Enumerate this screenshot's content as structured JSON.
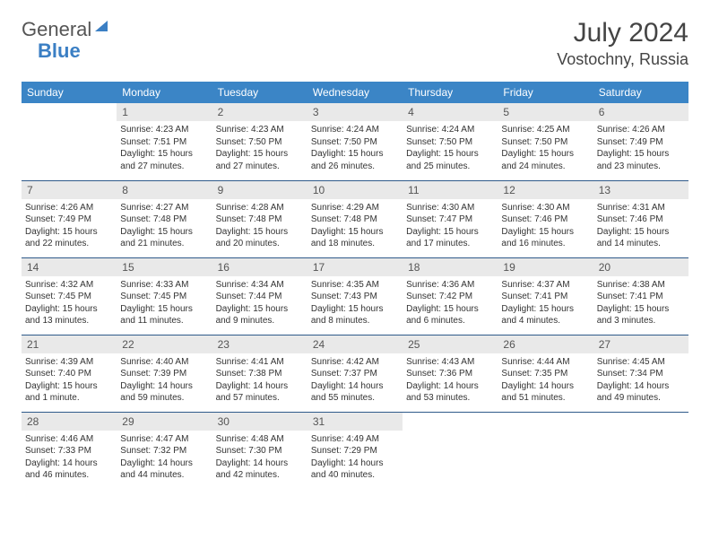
{
  "logo": {
    "text1": "General",
    "text2": "Blue"
  },
  "title": "July 2024",
  "location": "Vostochny, Russia",
  "dow": [
    "Sunday",
    "Monday",
    "Tuesday",
    "Wednesday",
    "Thursday",
    "Friday",
    "Saturday"
  ],
  "colors": {
    "headerBg": "#3b85c6",
    "headerText": "#ffffff",
    "dayNumBg": "#e9e9e9",
    "border": "#2f5a8a",
    "logoBlue": "#3b7fc4"
  },
  "weeks": [
    [
      null,
      {
        "n": "1",
        "sr": "Sunrise: 4:23 AM",
        "ss": "Sunset: 7:51 PM",
        "dl": "Daylight: 15 hours and 27 minutes."
      },
      {
        "n": "2",
        "sr": "Sunrise: 4:23 AM",
        "ss": "Sunset: 7:50 PM",
        "dl": "Daylight: 15 hours and 27 minutes."
      },
      {
        "n": "3",
        "sr": "Sunrise: 4:24 AM",
        "ss": "Sunset: 7:50 PM",
        "dl": "Daylight: 15 hours and 26 minutes."
      },
      {
        "n": "4",
        "sr": "Sunrise: 4:24 AM",
        "ss": "Sunset: 7:50 PM",
        "dl": "Daylight: 15 hours and 25 minutes."
      },
      {
        "n": "5",
        "sr": "Sunrise: 4:25 AM",
        "ss": "Sunset: 7:50 PM",
        "dl": "Daylight: 15 hours and 24 minutes."
      },
      {
        "n": "6",
        "sr": "Sunrise: 4:26 AM",
        "ss": "Sunset: 7:49 PM",
        "dl": "Daylight: 15 hours and 23 minutes."
      }
    ],
    [
      {
        "n": "7",
        "sr": "Sunrise: 4:26 AM",
        "ss": "Sunset: 7:49 PM",
        "dl": "Daylight: 15 hours and 22 minutes."
      },
      {
        "n": "8",
        "sr": "Sunrise: 4:27 AM",
        "ss": "Sunset: 7:48 PM",
        "dl": "Daylight: 15 hours and 21 minutes."
      },
      {
        "n": "9",
        "sr": "Sunrise: 4:28 AM",
        "ss": "Sunset: 7:48 PM",
        "dl": "Daylight: 15 hours and 20 minutes."
      },
      {
        "n": "10",
        "sr": "Sunrise: 4:29 AM",
        "ss": "Sunset: 7:48 PM",
        "dl": "Daylight: 15 hours and 18 minutes."
      },
      {
        "n": "11",
        "sr": "Sunrise: 4:30 AM",
        "ss": "Sunset: 7:47 PM",
        "dl": "Daylight: 15 hours and 17 minutes."
      },
      {
        "n": "12",
        "sr": "Sunrise: 4:30 AM",
        "ss": "Sunset: 7:46 PM",
        "dl": "Daylight: 15 hours and 16 minutes."
      },
      {
        "n": "13",
        "sr": "Sunrise: 4:31 AM",
        "ss": "Sunset: 7:46 PM",
        "dl": "Daylight: 15 hours and 14 minutes."
      }
    ],
    [
      {
        "n": "14",
        "sr": "Sunrise: 4:32 AM",
        "ss": "Sunset: 7:45 PM",
        "dl": "Daylight: 15 hours and 13 minutes."
      },
      {
        "n": "15",
        "sr": "Sunrise: 4:33 AM",
        "ss": "Sunset: 7:45 PM",
        "dl": "Daylight: 15 hours and 11 minutes."
      },
      {
        "n": "16",
        "sr": "Sunrise: 4:34 AM",
        "ss": "Sunset: 7:44 PM",
        "dl": "Daylight: 15 hours and 9 minutes."
      },
      {
        "n": "17",
        "sr": "Sunrise: 4:35 AM",
        "ss": "Sunset: 7:43 PM",
        "dl": "Daylight: 15 hours and 8 minutes."
      },
      {
        "n": "18",
        "sr": "Sunrise: 4:36 AM",
        "ss": "Sunset: 7:42 PM",
        "dl": "Daylight: 15 hours and 6 minutes."
      },
      {
        "n": "19",
        "sr": "Sunrise: 4:37 AM",
        "ss": "Sunset: 7:41 PM",
        "dl": "Daylight: 15 hours and 4 minutes."
      },
      {
        "n": "20",
        "sr": "Sunrise: 4:38 AM",
        "ss": "Sunset: 7:41 PM",
        "dl": "Daylight: 15 hours and 3 minutes."
      }
    ],
    [
      {
        "n": "21",
        "sr": "Sunrise: 4:39 AM",
        "ss": "Sunset: 7:40 PM",
        "dl": "Daylight: 15 hours and 1 minute."
      },
      {
        "n": "22",
        "sr": "Sunrise: 4:40 AM",
        "ss": "Sunset: 7:39 PM",
        "dl": "Daylight: 14 hours and 59 minutes."
      },
      {
        "n": "23",
        "sr": "Sunrise: 4:41 AM",
        "ss": "Sunset: 7:38 PM",
        "dl": "Daylight: 14 hours and 57 minutes."
      },
      {
        "n": "24",
        "sr": "Sunrise: 4:42 AM",
        "ss": "Sunset: 7:37 PM",
        "dl": "Daylight: 14 hours and 55 minutes."
      },
      {
        "n": "25",
        "sr": "Sunrise: 4:43 AM",
        "ss": "Sunset: 7:36 PM",
        "dl": "Daylight: 14 hours and 53 minutes."
      },
      {
        "n": "26",
        "sr": "Sunrise: 4:44 AM",
        "ss": "Sunset: 7:35 PM",
        "dl": "Daylight: 14 hours and 51 minutes."
      },
      {
        "n": "27",
        "sr": "Sunrise: 4:45 AM",
        "ss": "Sunset: 7:34 PM",
        "dl": "Daylight: 14 hours and 49 minutes."
      }
    ],
    [
      {
        "n": "28",
        "sr": "Sunrise: 4:46 AM",
        "ss": "Sunset: 7:33 PM",
        "dl": "Daylight: 14 hours and 46 minutes."
      },
      {
        "n": "29",
        "sr": "Sunrise: 4:47 AM",
        "ss": "Sunset: 7:32 PM",
        "dl": "Daylight: 14 hours and 44 minutes."
      },
      {
        "n": "30",
        "sr": "Sunrise: 4:48 AM",
        "ss": "Sunset: 7:30 PM",
        "dl": "Daylight: 14 hours and 42 minutes."
      },
      {
        "n": "31",
        "sr": "Sunrise: 4:49 AM",
        "ss": "Sunset: 7:29 PM",
        "dl": "Daylight: 14 hours and 40 minutes."
      },
      null,
      null,
      null
    ]
  ]
}
